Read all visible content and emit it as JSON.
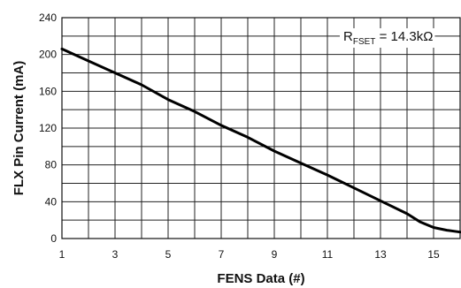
{
  "chart_data": {
    "type": "line",
    "xlabel": "FENS Data (#)",
    "ylabel": "FLX Pin Current (mA)",
    "xlim": [
      1,
      16
    ],
    "ylim": [
      0,
      240
    ],
    "x_ticks": [
      1,
      3,
      5,
      7,
      9,
      11,
      13,
      15
    ],
    "x_grid_step": 1,
    "y_ticks": [
      0,
      40,
      80,
      120,
      160,
      200,
      240
    ],
    "y_grid_step": 20,
    "grid": true,
    "annotation": {
      "main": "R",
      "subscript": "FSET",
      "value": " = 14.3kΩ",
      "placement": "top-right"
    },
    "series": [
      {
        "x": [
          1,
          2,
          3,
          4,
          5,
          6,
          7,
          8,
          9,
          10,
          11,
          12,
          13,
          14,
          14.5,
          15,
          15.5,
          16
        ],
        "values": [
          206,
          193,
          180,
          167,
          151,
          138,
          123,
          110,
          95,
          82,
          69,
          55,
          41,
          27,
          18,
          12,
          9,
          7
        ]
      }
    ]
  }
}
